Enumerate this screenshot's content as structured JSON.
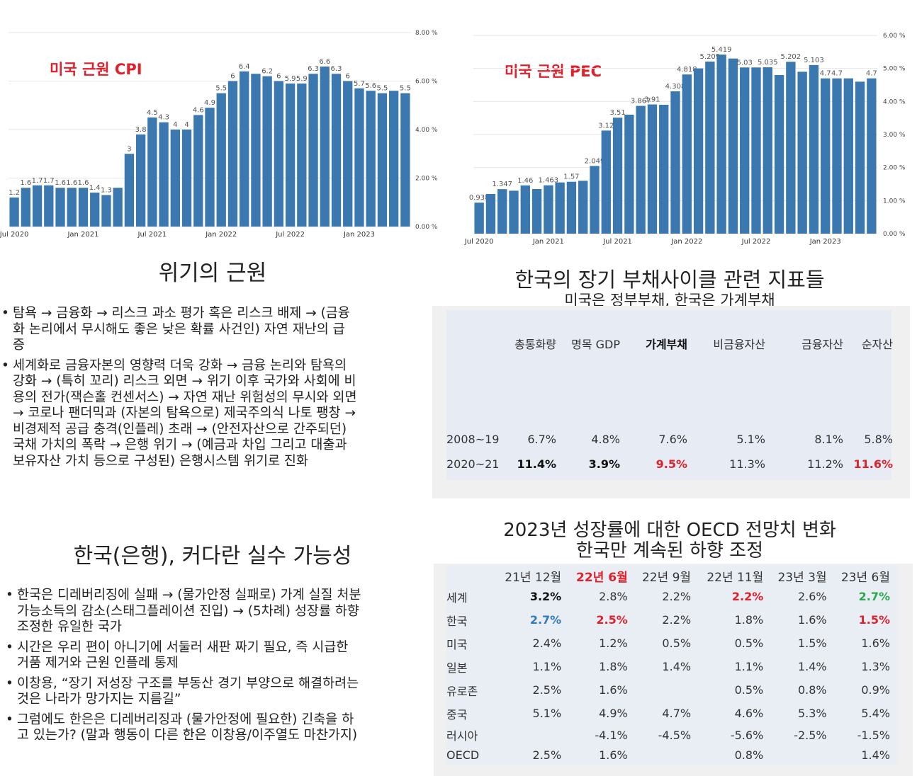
{
  "chart_data": [
    {
      "type": "bar",
      "title": "미국 근원 CPI",
      "x_tick_labels": [
        "Jul 2020",
        "Jan 2021",
        "Jul 2021",
        "Jan 2022",
        "Jul 2022",
        "Jan 2023"
      ],
      "values": [
        1.2,
        1.6,
        1.7,
        1.7,
        1.6,
        1.6,
        1.6,
        1.4,
        1.3,
        1.6,
        3,
        3.8,
        4.5,
        4.3,
        4,
        4,
        4.6,
        4.9,
        5.5,
        6,
        6.4,
        6.3,
        6.2,
        6,
        5.9,
        5.9,
        6.3,
        6.6,
        6.3,
        6,
        5.7,
        5.6,
        5.5,
        5.6,
        5.5
      ],
      "value_labels": [
        "1.2",
        "1.6",
        "1.7",
        "1.7",
        "1.6",
        "1.6",
        "1.6",
        "1.4",
        "1.3",
        "",
        "3",
        "3.8",
        "4.5",
        "4.3",
        "4",
        "4",
        "4.6",
        "4.9",
        "5.5",
        "6",
        "6.4",
        "",
        "6.2",
        "6",
        "5.9",
        "5.9",
        "6.3",
        "6.6",
        "6.3",
        "6",
        "5.7",
        "5.6",
        "5.5",
        "",
        "5.5"
      ],
      "y_tick_labels": [
        "8.00 %",
        "6.00 %",
        "4.00 %",
        "2.00 %",
        "0.00 %"
      ],
      "ylim": [
        0,
        8
      ],
      "color": "#3b78b0"
    },
    {
      "type": "bar",
      "title": "미국 근원 PEC",
      "x_tick_labels": [
        "Jul 2020",
        "Jan 2021",
        "Jul 2021",
        "Jan 2022",
        "Jul 2022",
        "Jan 2023"
      ],
      "values": [
        0.938,
        1.2,
        1.347,
        1.3,
        1.46,
        1.35,
        1.463,
        1.55,
        1.57,
        1.6,
        2.049,
        3.12,
        3.51,
        3.6,
        3.867,
        3.91,
        3.9,
        4.308,
        4.818,
        5.0,
        5.209,
        5.419,
        5.3,
        5.03,
        5.03,
        5.035,
        4.8,
        5.202,
        4.9,
        5.103,
        4.7,
        4.7,
        4.7,
        4.6,
        4.7
      ],
      "value_labels": [
        "0.938",
        "",
        "1.347",
        "",
        "1.46",
        "",
        "1.463",
        "",
        "1.57",
        "",
        "2.049",
        "3.12",
        "3.51",
        "",
        "3.867",
        "3.91",
        "",
        "4.308",
        "4.818",
        "",
        "5.209",
        "5.419",
        "",
        "5.03",
        "",
        "5.035",
        "",
        "5.202",
        "",
        "5.103",
        "4.7",
        "4.7",
        "",
        "",
        "4.7"
      ],
      "y_tick_labels": [
        "6.00 %",
        "5.00 %",
        "4.00 %",
        "3.00 %",
        "2.00 %",
        "1.00 %",
        "0.00 %"
      ],
      "ylim": [
        0,
        6
      ],
      "color": "#3b78b0"
    }
  ],
  "crisis": {
    "heading": "위기의 근원",
    "bullets": [
      {
        "lines": [
          "탐욕 → 금융화 → 리스크 과소 평가 혹은 리스크 배제 → (금융",
          "화 논리에서 무시해도 좋은 낮은 확률 사건인) 자연 재난의 급",
          "증"
        ]
      },
      {
        "lines": [
          "세계화로 금융자본의 영향력 더욱 강화 → 금융 논리와 탐욕의",
          "강화 → (특히 꼬리) 리스크 외면 → 위기 이후 국가와 사회에 비",
          "용의 전가(잭슨홀 컨센서스) → 자연 재난 위험성의 무시와 외면",
          "→ 코로나 팬더믹과 (자본의 탐욕으로) 제국주의식 나토 팽창 →",
          "비경제적 공급 충격(인플레) 초래 → (안전자산으로 간주되던)",
          "국채 가치의 폭락 → 은행 위기 → (예금과 차입 그리고 대출과",
          "보유자산 가치 등으로 구성된) 은행시스템 위기로 진화"
        ]
      }
    ]
  },
  "debt": {
    "heading": "한국의 장기 부채사이클 관련 지표들",
    "subheading": "미국은 정부부채, 한국은 가계부채",
    "columns": [
      "총통화량",
      "명목 GDP",
      "가계부채",
      "비금융자산",
      "금융자산",
      "순자산"
    ],
    "rows": [
      {
        "label": "2008~19",
        "cells": [
          "6.7%",
          "4.8%",
          "7.6%",
          "5.1%",
          "8.1%",
          "5.8%"
        ]
      },
      {
        "label": "2020~21",
        "cells": [
          "11.4%",
          "3.9%",
          "9.5%",
          "11.3%",
          "11.2%",
          "11.6%"
        ]
      }
    ],
    "colors": {
      "highlight_red": "#e0202a",
      "table_bg": "#e7ecf4",
      "frame_bg": "#f0f0f0"
    }
  },
  "mistake": {
    "heading": "한국(은행), 커다란 실수 가능성",
    "bullets": [
      {
        "lines": [
          "한국은 디레버리징에 실패 → (물가안정 실패로) 가계 실질 처분",
          "가능소득의 감소(스태그플레이션 진입) → (5차례) 성장률 하향",
          "조정한 유일한 국가"
        ]
      },
      {
        "lines": [
          "시간은 우리 편이 아니기에 서둘러 새판 짜기 필요, 즉 시급한",
          "거품 제거와 근원 인플레 통제"
        ]
      },
      {
        "lines": [
          "이창용, “장기 저성장 구조를 부동산 경기 부양으로 해결하려는",
          "것은 나라가 망가지는 지름길”"
        ]
      },
      {
        "lines": [
          "그럼에도 한은은 디레버리징과 (물가안정에 필요한) 긴축을 하",
          "고 있는가? (말과 행동이 다른 한은 이창용/이주열도 마찬가지)"
        ]
      }
    ]
  },
  "oecd": {
    "heading_line1": "2023년 성장률에 대한 OECD 전망치 변화",
    "heading_line2": "한국만 계속된 하향 조정",
    "columns": [
      "21년 12월",
      "22년 6월",
      "22년 9월",
      "22년 11월",
      "23년 3월",
      "23년 6월"
    ],
    "rows": [
      {
        "label": "세계",
        "cells": [
          "3.2%",
          "2.8%",
          "2.2%",
          "2.2%",
          "2.6%",
          "2.7%"
        ]
      },
      {
        "label": "한국",
        "cells": [
          "2.7%",
          "2.5%",
          "2.2%",
          "1.8%",
          "1.6%",
          "1.5%"
        ]
      },
      {
        "label": "미국",
        "cells": [
          "2.4%",
          "1.2%",
          "0.5%",
          "0.5%",
          "1.5%",
          "1.6%"
        ]
      },
      {
        "label": "일본",
        "cells": [
          "1.1%",
          "1.8%",
          "1.4%",
          "1.1%",
          "1.4%",
          "1.3%"
        ]
      },
      {
        "label": "유로존",
        "cells": [
          "2.5%",
          "1.6%",
          "",
          "0.5%",
          "0.8%",
          "0.9%"
        ]
      },
      {
        "label": "중국",
        "cells": [
          "5.1%",
          "4.9%",
          "4.7%",
          "4.6%",
          "5.3%",
          "5.4%"
        ]
      },
      {
        "label": "러시아",
        "cells": [
          "",
          "-4.1%",
          "-4.5%",
          "-5.6%",
          "-2.5%",
          "-1.5%"
        ]
      },
      {
        "label": "OECD",
        "cells": [
          "2.5%",
          "1.6%",
          "",
          "0.8%",
          "",
          "1.4%"
        ]
      }
    ],
    "colors": {
      "red": "#e0202a",
      "blue": "#2f7cc0",
      "green": "#2aa84a",
      "table_bg": "#e9edf4"
    }
  }
}
